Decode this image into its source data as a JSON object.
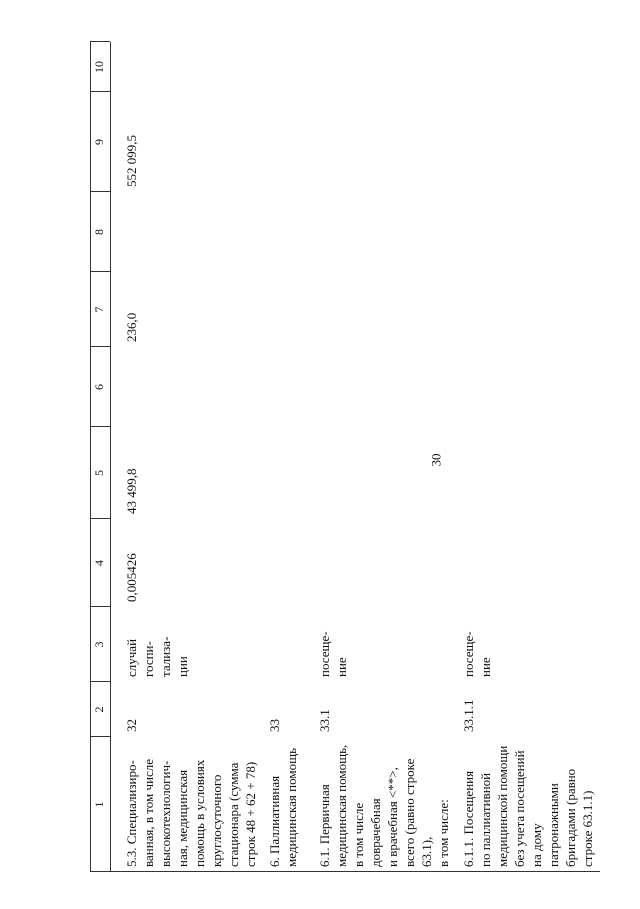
{
  "header": {
    "page_number": "30"
  },
  "table": {
    "column_numbers": [
      "1",
      "2",
      "3",
      "4",
      "5",
      "6",
      "7",
      "8",
      "9",
      "10"
    ],
    "rows": [
      [
        "5.3. Специализиро-\nванная, в том числе\nвысокотехнологич-\nная, медицинская\nпомощь в условиях\nкруглосуточного\nстационара (сумма\nстрок 48 + 62 + 78)",
        "32",
        "случай\nгоспи-\nтализа-\nции",
        "0,005426",
        "43 499,8",
        null,
        "236,0",
        null,
        "552 099,5",
        null
      ],
      [
        "6. Паллиативная\nмедицинская помощь",
        "33",
        null,
        null,
        null,
        null,
        null,
        null,
        null,
        null
      ],
      [
        "6.1. Первичная\nмедицинская помощь,\nв том числе\nдоврачебная\nи врачебная <**>,\nвсего (равно строке\n63.1),\nв том числе:",
        "33.1",
        "посеще-\nние",
        null,
        null,
        null,
        null,
        null,
        null,
        null
      ],
      [
        "6.1.1. Посещения\nпо паллиативной\nмедицинской помощи\nбез учета посещений\nна дому\nпатронажными\nбригадами (равно\nстроке 63.1.1)",
        "33.1.1",
        "посеще-\nние",
        null,
        null,
        null,
        null,
        null,
        null,
        null
      ]
    ]
  }
}
